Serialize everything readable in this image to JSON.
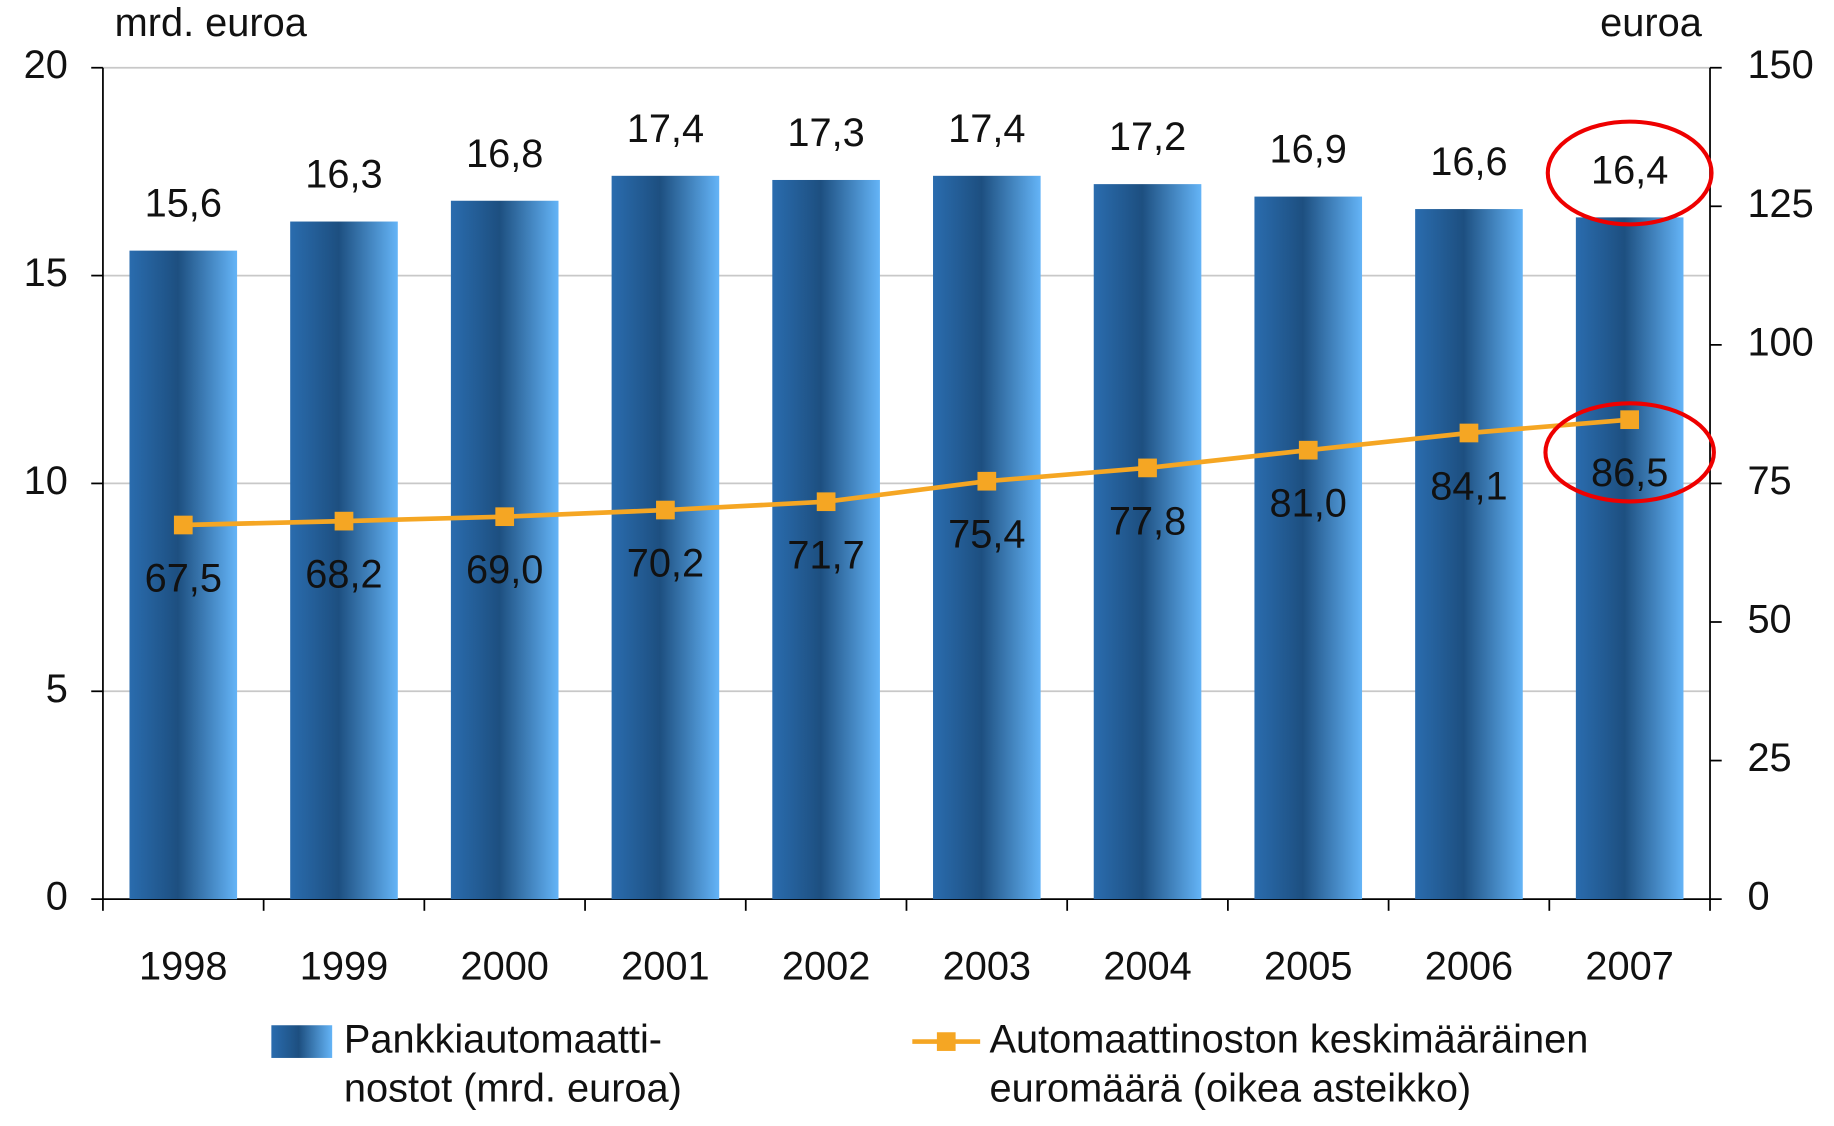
{
  "chart_data": {
    "type": "bar",
    "y_label": "mrd. euroa",
    "y2_label": "euroa",
    "categories": [
      "1998",
      "1999",
      "2000",
      "2001",
      "2002",
      "2003",
      "2004",
      "2005",
      "2006",
      "2007"
    ],
    "series": [
      {
        "name": "Pankkiautomaatti-\nnostot (mrd. euroa)",
        "type": "bar",
        "color": "#3d8fd9",
        "values": [
          15.6,
          16.3,
          16.8,
          17.4,
          17.3,
          17.4,
          17.2,
          16.9,
          16.6,
          16.4
        ],
        "value_labels": [
          "15,6",
          "16,3",
          "16,8",
          "17,4",
          "17,3",
          "17,4",
          "17,2",
          "16,9",
          "16,6",
          "16,4"
        ]
      },
      {
        "name": "Automaattinoston keskimääräinen\neuromäärä (oikea asteikko)",
        "type": "line",
        "axis": "y2",
        "color": "#f5a623",
        "values": [
          67.5,
          68.2,
          69.0,
          70.2,
          71.7,
          75.4,
          77.8,
          81.0,
          84.1,
          86.5
        ],
        "value_labels": [
          "67,5",
          "68,2",
          "69,0",
          "70,2",
          "71,7",
          "75,4",
          "77,8",
          "81,0",
          "84,1",
          "86,5"
        ]
      }
    ],
    "ylim": [
      0,
      20
    ],
    "yticks": [
      0,
      5,
      10,
      15,
      20
    ],
    "y2lim": [
      0,
      150
    ],
    "y2ticks": [
      0,
      25,
      50,
      75,
      100,
      125,
      150
    ],
    "grid": true
  }
}
